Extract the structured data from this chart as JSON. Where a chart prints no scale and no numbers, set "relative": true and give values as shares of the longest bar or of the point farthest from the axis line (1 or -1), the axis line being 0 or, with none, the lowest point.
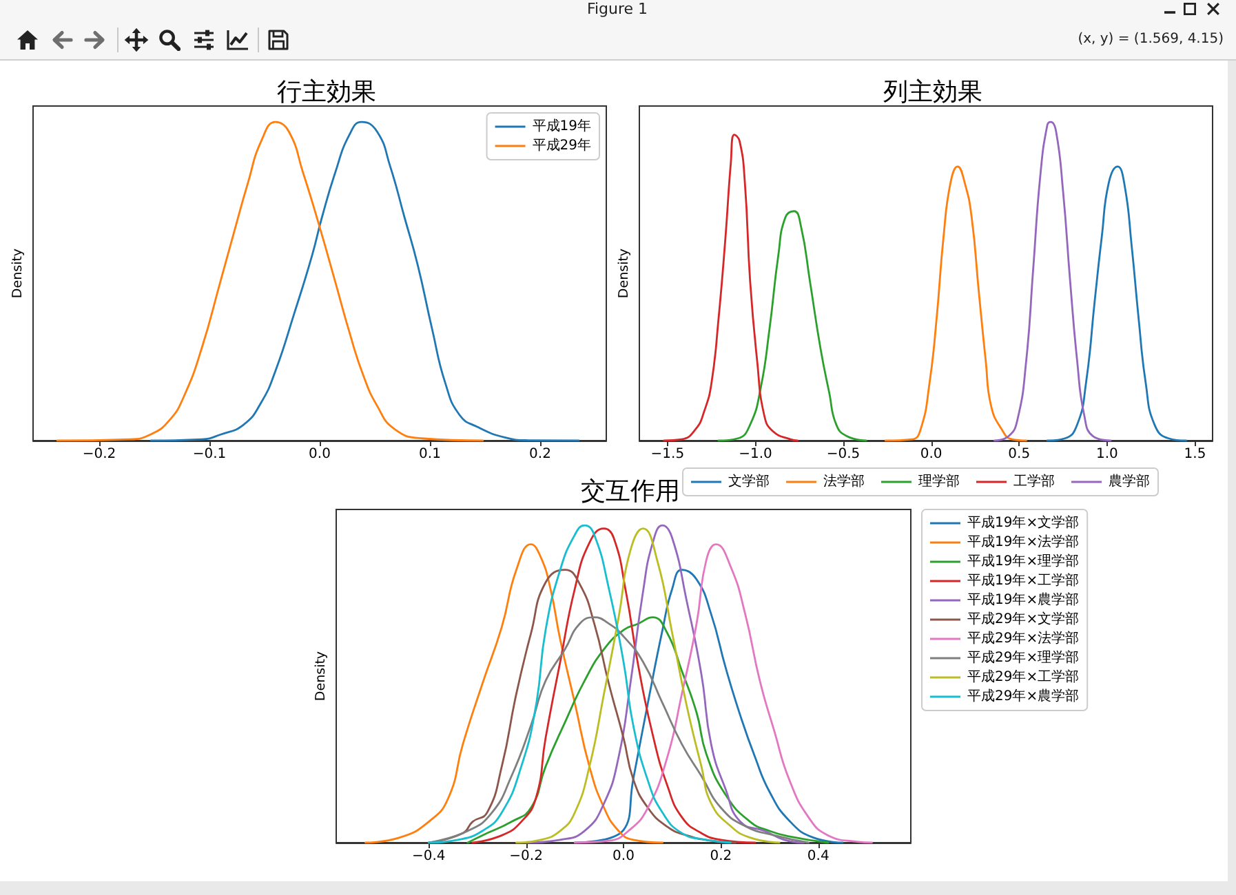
{
  "chart_data": [
    {
      "type": "line",
      "title": "行主効果",
      "ylabel": "Density",
      "relative": true,
      "legend": "top right",
      "annotations": [
        "Figure 1",
        "(x, y) = (1.569, 4.15)"
      ],
      "xlim": [
        -0.26,
        0.26
      ],
      "xticks": [
        {
          "value": -0.2,
          "label": "−0.2"
        },
        {
          "value": -0.1,
          "label": "−0.1"
        },
        {
          "value": 0,
          "label": "0.0"
        },
        {
          "value": 0.1,
          "label": "0.1"
        },
        {
          "value": 0.2,
          "label": "0.2"
        }
      ],
      "series": [
        {
          "name": "平成19年",
          "color": "#1f77b4",
          "x": [
            -0.153,
            -0.107,
            -0.09,
            -0.069,
            -0.053,
            -0.04,
            -0.023,
            -0.007,
            0.002,
            0.014,
            0.027,
            0.038,
            0.052,
            0.064,
            0.077,
            0.089,
            0.102,
            0.114,
            0.127,
            0.143,
            0.168,
            0.189,
            0.235
          ],
          "values": [
            0,
            0.004,
            0.019,
            0.05,
            0.12,
            0.22,
            0.4,
            0.58,
            0.7,
            0.84,
            0.96,
            1,
            0.97,
            0.86,
            0.7,
            0.55,
            0.35,
            0.18,
            0.08,
            0.043,
            0.01,
            0.001,
            0
          ]
        },
        {
          "name": "平成29年",
          "color": "#ff7f0e",
          "x": [
            -0.238,
            -0.173,
            -0.153,
            -0.136,
            -0.123,
            -0.107,
            -0.09,
            -0.078,
            -0.065,
            -0.053,
            -0.04,
            -0.028,
            -0.015,
            0,
            0.014,
            0.027,
            0.039,
            0.052,
            0.068,
            0.093,
            0.148
          ],
          "values": [
            0,
            0.004,
            0.02,
            0.065,
            0.14,
            0.29,
            0.5,
            0.65,
            0.81,
            0.94,
            1,
            0.97,
            0.84,
            0.67,
            0.5,
            0.34,
            0.21,
            0.11,
            0.036,
            0.007,
            0
          ]
        }
      ]
    },
    {
      "type": "line",
      "title": "列主効果",
      "ylabel": "Density",
      "relative": true,
      "legend": "bottom",
      "xlim": [
        -1.66,
        1.6
      ],
      "xticks": [
        {
          "value": -1.5,
          "label": "−1.5"
        },
        {
          "value": -1,
          "label": "−1.0"
        },
        {
          "value": -0.5,
          "label": "−0.5"
        },
        {
          "value": 0,
          "label": "0.0"
        },
        {
          "value": 0.5,
          "label": "0.5"
        },
        {
          "value": 1,
          "label": "1.0"
        },
        {
          "value": 1.5,
          "label": "1.5"
        }
      ],
      "series": [
        {
          "name": "文学部",
          "color": "#1f77b4",
          "x": [
            0.66,
            0.76,
            0.83,
            0.88,
            0.93,
            0.97,
            1.01,
            1.06,
            1.1,
            1.14,
            1.18,
            1.22,
            1.27,
            1.35,
            1.45
          ],
          "values": [
            0,
            0.007,
            0.05,
            0.18,
            0.44,
            0.64,
            0.81,
            0.86,
            0.8,
            0.61,
            0.38,
            0.18,
            0.05,
            0.007,
            0
          ]
        },
        {
          "name": "法学部",
          "color": "#ff7f0e",
          "x": [
            -0.26,
            -0.11,
            -0.06,
            -0.01,
            0.03,
            0.07,
            0.11,
            0.15,
            0.19,
            0.23,
            0.27,
            0.31,
            0.34,
            0.4,
            0.46,
            0.54
          ],
          "values": [
            0,
            0.004,
            0.036,
            0.18,
            0.38,
            0.64,
            0.81,
            0.86,
            0.81,
            0.7,
            0.47,
            0.25,
            0.11,
            0.036,
            0.004,
            0
          ]
        },
        {
          "name": "理学部",
          "color": "#2ca02c",
          "x": [
            -1.21,
            -1.1,
            -1.03,
            -0.97,
            -0.92,
            -0.87,
            -0.83,
            -0.78,
            -0.74,
            -0.69,
            -0.63,
            -0.58,
            -0.54,
            -0.48,
            -0.37
          ],
          "values": [
            0,
            0.007,
            0.05,
            0.165,
            0.35,
            0.58,
            0.7,
            0.72,
            0.67,
            0.5,
            0.29,
            0.15,
            0.05,
            0.014,
            0
          ]
        },
        {
          "name": "工学部",
          "color": "#d62728",
          "x": [
            -1.52,
            -1.42,
            -1.34,
            -1.29,
            -1.25,
            -1.21,
            -1.17,
            -1.14,
            -1.12,
            -1.09,
            -1.06,
            -1.03,
            -0.99,
            -0.95,
            -0.9,
            -0.8,
            -0.76
          ],
          "values": [
            0,
            0.004,
            0.036,
            0.094,
            0.18,
            0.38,
            0.64,
            0.87,
            0.96,
            0.94,
            0.81,
            0.5,
            0.25,
            0.08,
            0.029,
            0.004,
            0
          ]
        },
        {
          "name": "農学部",
          "color": "#9467bd",
          "x": [
            0.36,
            0.44,
            0.49,
            0.54,
            0.58,
            0.62,
            0.66,
            0.68,
            0.71,
            0.75,
            0.79,
            0.83,
            0.87,
            0.92,
            1.02
          ],
          "values": [
            0,
            0.014,
            0.065,
            0.25,
            0.54,
            0.83,
            0.99,
            1,
            0.97,
            0.78,
            0.5,
            0.25,
            0.08,
            0.014,
            0
          ]
        }
      ]
    },
    {
      "type": "line",
      "title": "交互作用",
      "ylabel": "Density",
      "relative": true,
      "legend": "right",
      "xlim": [
        -0.59,
        0.59
      ],
      "xticks": [
        {
          "value": -0.4,
          "label": "−0.4"
        },
        {
          "value": -0.2,
          "label": "−0.2"
        },
        {
          "value": 0,
          "label": "0.0"
        },
        {
          "value": 0.2,
          "label": "0.2"
        },
        {
          "value": 0.4,
          "label": "0.4"
        }
      ],
      "series": [
        {
          "name": "平成19年×文学部",
          "color": "#1f77b4",
          "x": [
            -0.1,
            0.0,
            0.02,
            0.05,
            0.08,
            0.1,
            0.12,
            0.15,
            0.18,
            0.21,
            0.24,
            0.27,
            0.3,
            0.34,
            0.39,
            0.45
          ],
          "values": [
            0,
            0.04,
            0.2,
            0.44,
            0.67,
            0.8,
            0.86,
            0.83,
            0.72,
            0.55,
            0.4,
            0.27,
            0.16,
            0.07,
            0.016,
            0
          ]
        },
        {
          "name": "平成19年×法学部",
          "color": "#ff7f0e",
          "x": [
            -0.53,
            -0.46,
            -0.4,
            -0.36,
            -0.33,
            -0.29,
            -0.25,
            -0.22,
            -0.19,
            -0.17,
            -0.15,
            -0.13,
            -0.1,
            -0.07,
            -0.04,
            -0.01,
            0.02,
            0.08
          ],
          "values": [
            0,
            0.016,
            0.066,
            0.14,
            0.31,
            0.5,
            0.68,
            0.86,
            0.94,
            0.9,
            0.8,
            0.64,
            0.44,
            0.24,
            0.11,
            0.037,
            0.009,
            0
          ]
        },
        {
          "name": "平成19年×理学部",
          "color": "#2ca02c",
          "x": [
            -0.32,
            -0.29,
            -0.23,
            -0.19,
            -0.16,
            -0.12,
            -0.08,
            -0.04,
            0.0,
            0.03,
            0.06,
            0.09,
            0.12,
            0.15,
            0.17,
            0.21,
            0.26,
            0.3,
            0.34,
            0.42
          ],
          "values": [
            0,
            0.023,
            0.066,
            0.11,
            0.24,
            0.38,
            0.51,
            0.61,
            0.67,
            0.69,
            0.71,
            0.66,
            0.54,
            0.41,
            0.28,
            0.15,
            0.066,
            0.037,
            0.02,
            0
          ]
        },
        {
          "name": "平成19年×工学部",
          "color": "#d62728",
          "x": [
            -0.31,
            -0.25,
            -0.21,
            -0.18,
            -0.16,
            -0.13,
            -0.1,
            -0.07,
            -0.04,
            -0.02,
            0.005,
            0.03,
            0.06,
            0.09,
            0.12,
            0.16,
            0.2,
            0.27
          ],
          "values": [
            0,
            0.023,
            0.066,
            0.14,
            0.33,
            0.57,
            0.8,
            0.945,
            0.99,
            0.96,
            0.79,
            0.56,
            0.34,
            0.18,
            0.08,
            0.03,
            0.009,
            0
          ]
        },
        {
          "name": "平成19年×農学部",
          "color": "#9467bd",
          "x": [
            -0.2,
            -0.13,
            -0.08,
            -0.04,
            -0.01,
            0.014,
            0.04,
            0.06,
            0.08,
            0.1,
            0.13,
            0.16,
            0.18,
            0.21,
            0.24,
            0.29,
            0.33,
            0.37
          ],
          "values": [
            0,
            0.009,
            0.037,
            0.124,
            0.27,
            0.5,
            0.79,
            0.945,
            1,
            0.96,
            0.76,
            0.53,
            0.31,
            0.167,
            0.066,
            0.037,
            0.009,
            0
          ]
        },
        {
          "name": "平成29年×文学部",
          "color": "#8c564b",
          "x": [
            -0.4,
            -0.33,
            -0.31,
            -0.28,
            -0.25,
            -0.22,
            -0.19,
            -0.16,
            -0.12,
            -0.09,
            -0.06,
            -0.03,
            0.0,
            0.02,
            0.05,
            0.09,
            0.13,
            0.18,
            0.23
          ],
          "values": [
            0,
            0.03,
            0.066,
            0.095,
            0.24,
            0.47,
            0.66,
            0.82,
            0.86,
            0.815,
            0.69,
            0.5,
            0.33,
            0.2,
            0.11,
            0.05,
            0.023,
            0.006,
            0
          ]
        },
        {
          "name": "平成29年×法学部",
          "color": "#e377c2",
          "x": [
            -0.1,
            -0.03,
            0.01,
            0.05,
            0.09,
            0.12,
            0.15,
            0.17,
            0.19,
            0.22,
            0.25,
            0.28,
            0.31,
            0.34,
            0.38,
            0.42,
            0.48,
            0.51
          ],
          "values": [
            0,
            0.006,
            0.037,
            0.11,
            0.27,
            0.47,
            0.69,
            0.89,
            0.94,
            0.87,
            0.72,
            0.51,
            0.35,
            0.2,
            0.08,
            0.023,
            0.003,
            0
          ]
        },
        {
          "name": "平成29年×理学部",
          "color": "#7f7f7f",
          "x": [
            -0.4,
            -0.32,
            -0.27,
            -0.23,
            -0.19,
            -0.16,
            -0.12,
            -0.09,
            -0.06,
            -0.03,
            0.0,
            0.04,
            0.08,
            0.12,
            0.16,
            0.2,
            0.25,
            0.31,
            0.38
          ],
          "values": [
            0,
            0.037,
            0.095,
            0.21,
            0.37,
            0.51,
            0.61,
            0.69,
            0.71,
            0.69,
            0.65,
            0.57,
            0.44,
            0.31,
            0.21,
            0.11,
            0.052,
            0.023,
            0
          ]
        },
        {
          "name": "平成29年×工学部",
          "color": "#bcbd22",
          "x": [
            -0.22,
            -0.17,
            -0.13,
            -0.1,
            -0.07,
            -0.04,
            -0.01,
            0.014,
            0.04,
            0.07,
            0.1,
            0.13,
            0.16,
            0.18,
            0.22,
            0.26,
            0.32
          ],
          "values": [
            0,
            0.009,
            0.037,
            0.095,
            0.24,
            0.47,
            0.71,
            0.92,
            0.99,
            0.885,
            0.66,
            0.43,
            0.24,
            0.124,
            0.052,
            0.016,
            0
          ]
        },
        {
          "name": "平成29年×農学部",
          "color": "#17becf",
          "x": [
            -0.4,
            -0.34,
            -0.29,
            -0.25,
            -0.21,
            -0.18,
            -0.16,
            -0.13,
            -0.1,
            -0.08,
            -0.06,
            -0.03,
            0.0,
            0.02,
            0.05,
            0.08,
            0.12,
            0.17,
            0.22
          ],
          "values": [
            0,
            0.009,
            0.037,
            0.095,
            0.24,
            0.43,
            0.67,
            0.86,
            0.97,
            1,
            0.97,
            0.8,
            0.57,
            0.37,
            0.196,
            0.095,
            0.03,
            0.009,
            0
          ]
        }
      ]
    }
  ]
}
